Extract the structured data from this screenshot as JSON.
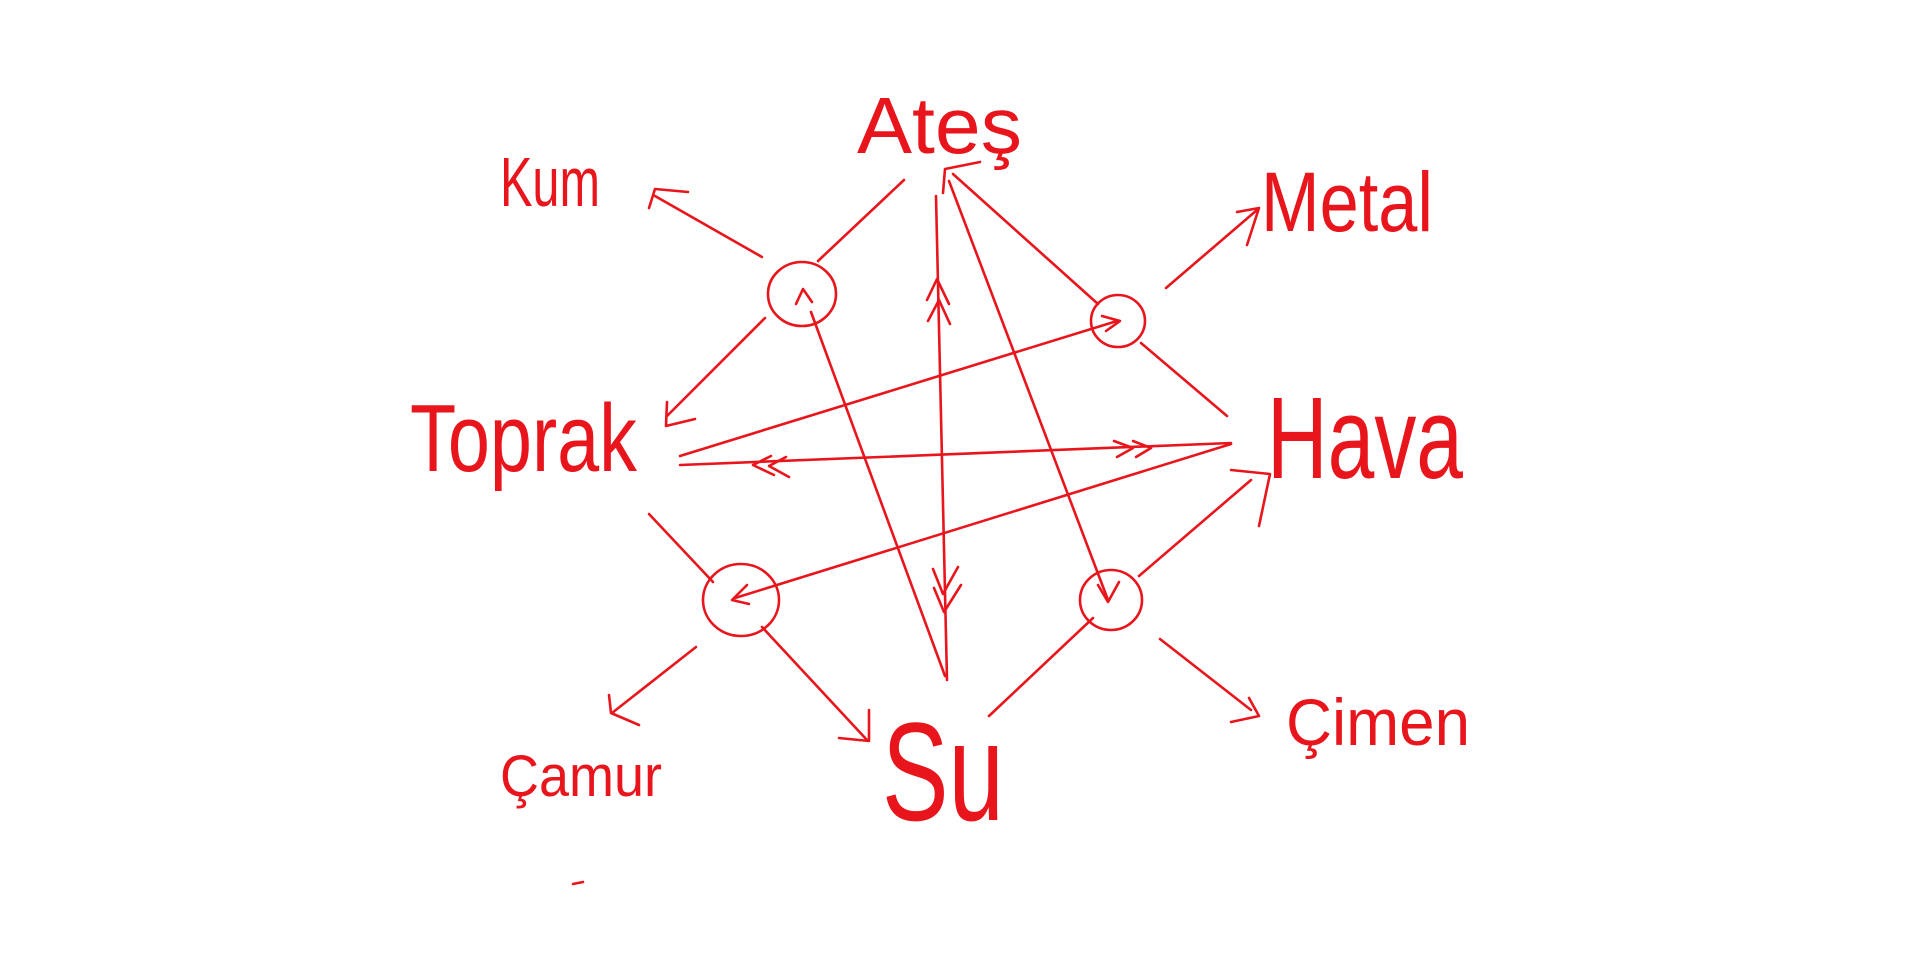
{
  "elements": {
    "fire": "Ateş",
    "earth": "Toprak",
    "air": "Hava",
    "water": "Su"
  },
  "products": {
    "sand": "Kum",
    "metal": "Metal",
    "mud": "Çamur",
    "grass": "Çimen"
  },
  "colors": {
    "ink": "#e8161c",
    "background": "#ffffff"
  }
}
